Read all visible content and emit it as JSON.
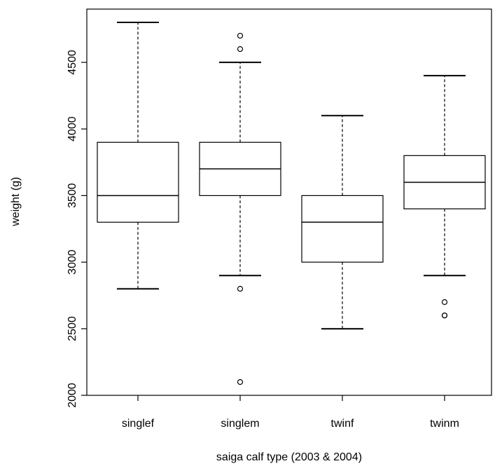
{
  "chart_data": {
    "type": "boxplot",
    "title": "",
    "xlabel": "saiga calf type (2003 & 2004)",
    "ylabel": "weight (g)",
    "ylim": [
      2000,
      4900
    ],
    "yticks": [
      2000,
      2500,
      3000,
      3500,
      4000,
      4500
    ],
    "ytick_labels": [
      "2000",
      "2500",
      "3000",
      "3500",
      "4000",
      "4500"
    ],
    "grid": false,
    "legend": "none",
    "categories": [
      "singlef",
      "singlem",
      "twinf",
      "twinm"
    ],
    "boxes": [
      {
        "category": "singlef",
        "whisker_low": 2800,
        "q1": 3300,
        "median": 3500,
        "q3": 3900,
        "whisker_high": 4800,
        "outliers": []
      },
      {
        "category": "singlem",
        "whisker_low": 2900,
        "q1": 3500,
        "median": 3700,
        "q3": 3900,
        "whisker_high": 4500,
        "outliers": [
          4700,
          4600,
          2800,
          2100
        ]
      },
      {
        "category": "twinf",
        "whisker_low": 2500,
        "q1": 3000,
        "median": 3300,
        "q3": 3500,
        "whisker_high": 4100,
        "outliers": []
      },
      {
        "category": "twinm",
        "whisker_low": 2900,
        "q1": 3400,
        "median": 3600,
        "q3": 3800,
        "whisker_high": 4400,
        "outliers": [
          2700,
          2600,
          2600
        ]
      }
    ]
  }
}
